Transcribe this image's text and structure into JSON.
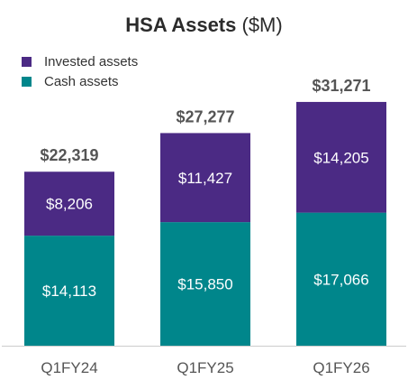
{
  "title": {
    "main": "HSA Assets",
    "unit": "($M)"
  },
  "colors": {
    "invested": "#4b2a84",
    "cash": "#00868b",
    "total_label": "#555555",
    "axis": "#cccccc",
    "tick_label": "#555555"
  },
  "chart_data": {
    "type": "bar",
    "stacked": true,
    "categories": [
      "Q1FY24",
      "Q1FY25",
      "Q1FY26"
    ],
    "series": [
      {
        "name": "Cash assets",
        "key": "cash",
        "values": [
          14113,
          15850,
          17066
        ],
        "labels": [
          "$14,113",
          "$15,850",
          "$17,066"
        ]
      },
      {
        "name": "Invested assets",
        "key": "invested",
        "values": [
          8206,
          11427,
          14205
        ],
        "labels": [
          "$8,206",
          "$11,427",
          "$14,205"
        ]
      }
    ],
    "totals": [
      22319,
      27277,
      31271
    ],
    "total_labels": [
      "$22,319",
      "$27,277",
      "$31,271"
    ],
    "legend": [
      {
        "name": "Invested assets",
        "key": "invested"
      },
      {
        "name": "Cash assets",
        "key": "cash"
      }
    ],
    "legend_position": "top-left",
    "grid": false,
    "ylim": [
      0,
      33000
    ]
  }
}
